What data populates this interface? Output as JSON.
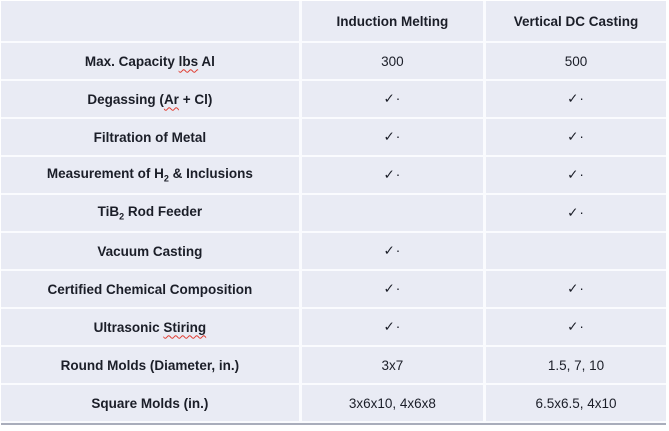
{
  "table": {
    "fill_color": "#e9ebf4",
    "gridline_color": "#fafbfe",
    "bottom_border_color": "#a9adbb",
    "text_color": "#1b1e28",
    "misspelling_underline_color": "#e03b30",
    "check_glyph": "✓·",
    "columns": [
      {
        "label": ""
      },
      {
        "label": "Induction Melting"
      },
      {
        "label": "Vertical DC Casting"
      }
    ],
    "rows": [
      {
        "label_parts": [
          {
            "t": "Max. Capacity "
          },
          {
            "t": "lbs",
            "squiggle": true
          },
          {
            "t": " Al"
          }
        ],
        "cells": [
          "300",
          "500"
        ]
      },
      {
        "label_parts": [
          {
            "t": "Degassing ("
          },
          {
            "t": "Ar",
            "squiggle": true
          },
          {
            "t": " + Cl)"
          }
        ],
        "cells": [
          "✓·",
          "✓·"
        ]
      },
      {
        "label_parts": [
          {
            "t": "Filtration of Metal"
          }
        ],
        "cells": [
          "✓·",
          "✓·"
        ]
      },
      {
        "label_parts": [
          {
            "t": "Measurement of H"
          },
          {
            "t": "2",
            "sub": true
          },
          {
            "t": " & Inclusions"
          }
        ],
        "cells": [
          "✓·",
          "✓·"
        ]
      },
      {
        "label_parts": [
          {
            "t": "TiB"
          },
          {
            "t": "2",
            "sub": true
          },
          {
            "t": " Rod Feeder"
          }
        ],
        "cells": [
          "",
          "✓·"
        ]
      },
      {
        "label_parts": [
          {
            "t": "Vacuum Casting"
          }
        ],
        "cells": [
          "✓·",
          ""
        ]
      },
      {
        "label_parts": [
          {
            "t": "Certified Chemical Composition"
          }
        ],
        "cells": [
          "✓·",
          "✓·"
        ]
      },
      {
        "label_parts": [
          {
            "t": "Ultrasonic "
          },
          {
            "t": "Stiring",
            "squiggle": true
          }
        ],
        "cells": [
          "✓·",
          "✓·"
        ]
      },
      {
        "label_parts": [
          {
            "t": "Round Molds (Diameter, in.)"
          }
        ],
        "cells": [
          "3x7",
          "1.5, 7, 10"
        ]
      },
      {
        "label_parts": [
          {
            "t": "Square Molds (in.)"
          }
        ],
        "cells": [
          "3x6x10, 4x6x8",
          "6.5x6.5, 4x10"
        ]
      }
    ]
  }
}
